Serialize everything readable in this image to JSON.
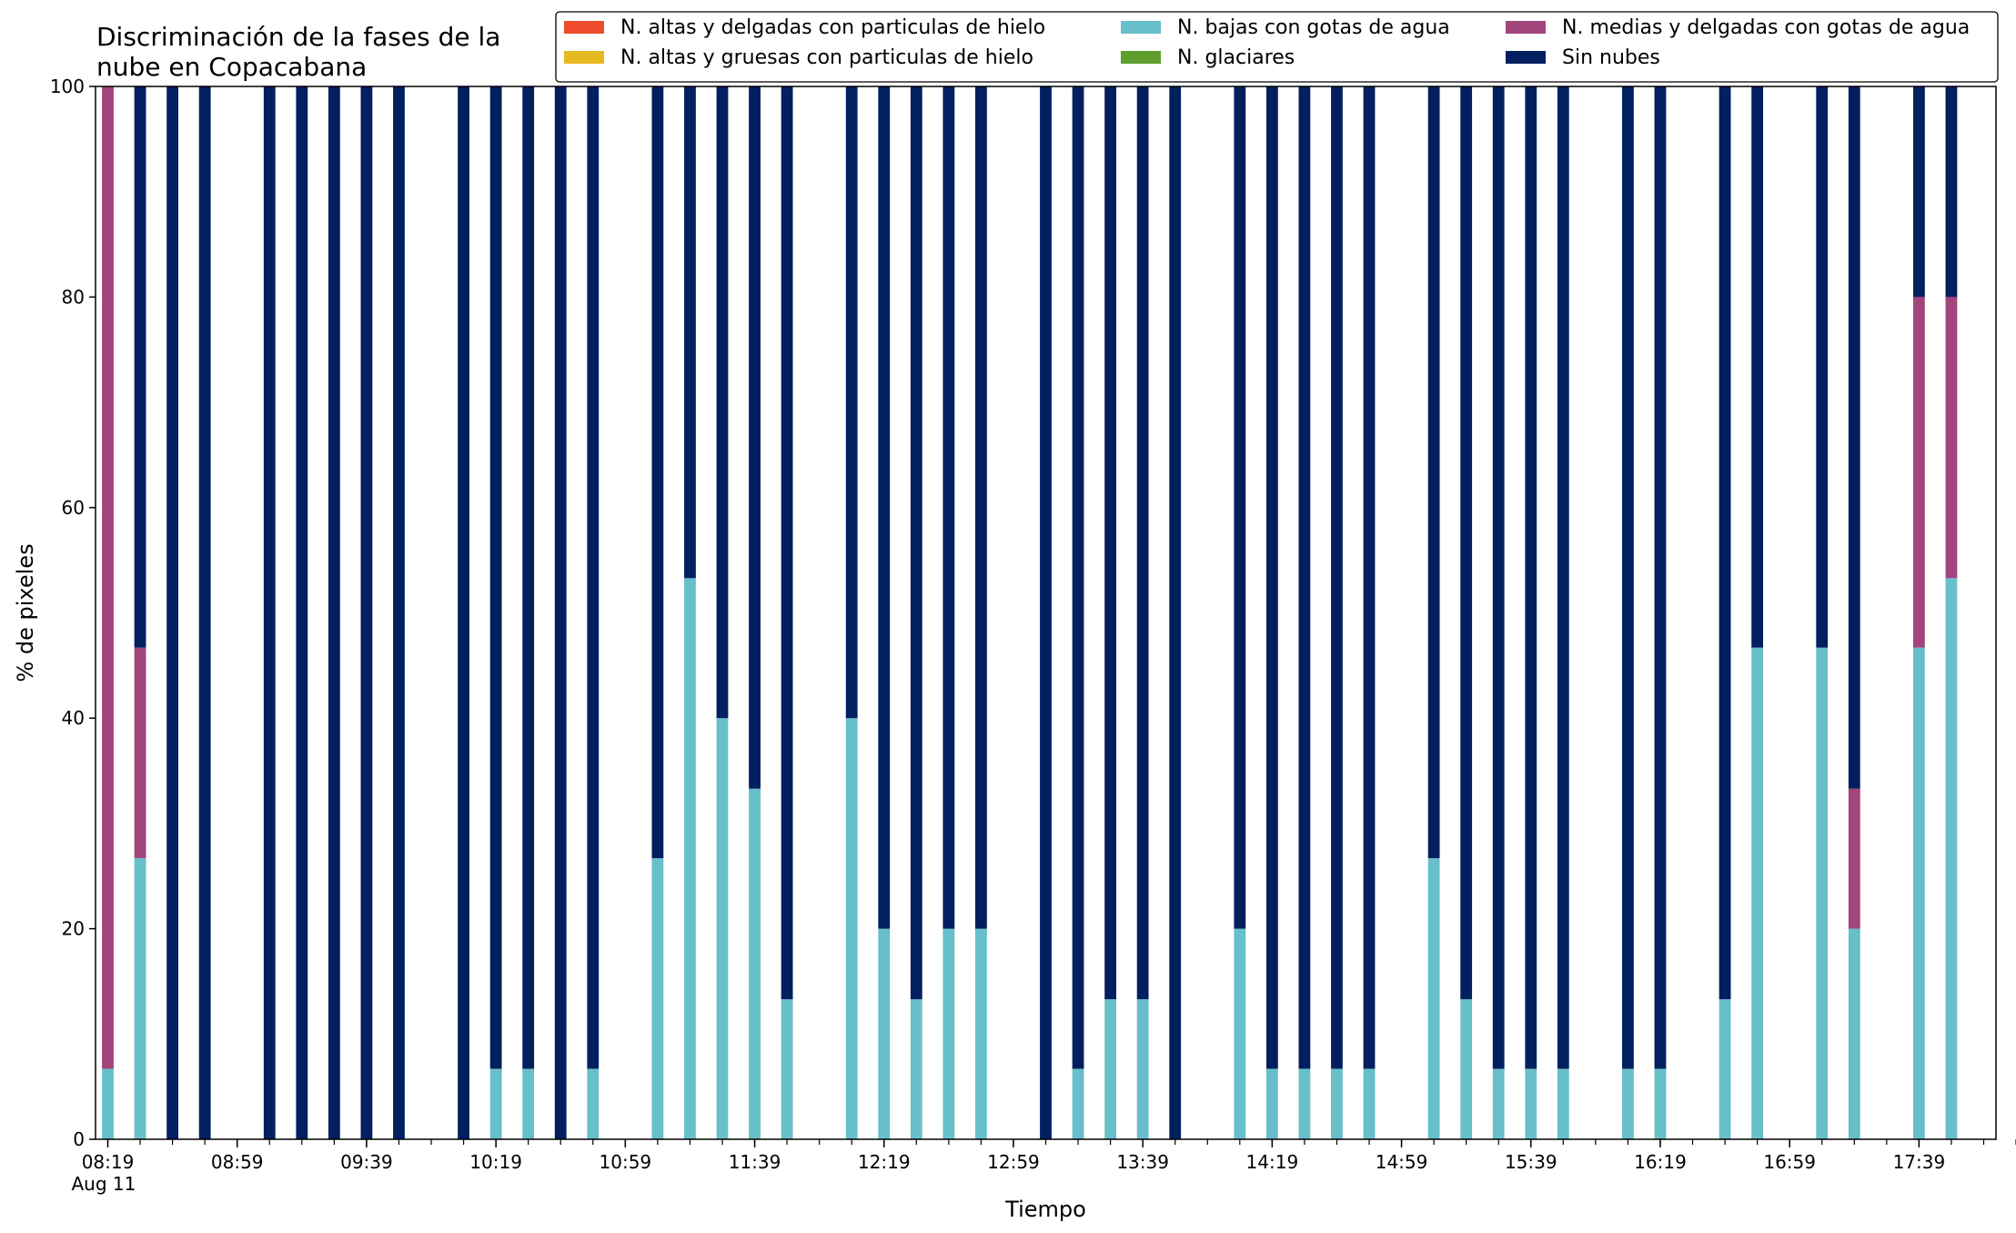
{
  "chart_data": {
    "type": "bar",
    "stacked": true,
    "title_lines": [
      "Discriminación de la fases de la",
      "nube en Copacabana"
    ],
    "xlabel": "Tiempo",
    "ylabel": "% de pixeles",
    "ylim": [
      0,
      100
    ],
    "yticks": [
      0,
      20,
      40,
      60,
      80,
      100
    ],
    "xrange": [
      "08:19",
      "18:09"
    ],
    "xtick_labels": [
      "08:19",
      "08:59",
      "09:39",
      "10:19",
      "10:59",
      "11:39",
      "12:19",
      "12:59",
      "13:39",
      "14:19",
      "14:59",
      "15:39",
      "16:19",
      "16:59",
      "17:39"
    ],
    "xtick_date_label": "Aug 11",
    "legend_position": "top-right",
    "legend_columns": 3,
    "series": [
      {
        "name": "N. altas y delgadas con particulas de hielo",
        "color": "#ee4c2c"
      },
      {
        "name": "N. altas y gruesas con particulas de hielo",
        "color": "#e6b91e"
      },
      {
        "name": "N. bajas con gotas de agua",
        "color": "#67bfca"
      },
      {
        "name": "N. glaciares",
        "color": "#5e9e2c"
      },
      {
        "name": "N. medias y delgadas con gotas de agua",
        "color": "#a1457a"
      },
      {
        "name": "Sin nubes",
        "color": "#021f5f"
      }
    ],
    "bars": [
      {
        "time": "08:19",
        "values": [
          0,
          0,
          6.7,
          0,
          93.3,
          0
        ]
      },
      {
        "time": "08:29",
        "values": [
          0,
          0,
          26.7,
          0,
          20.0,
          53.3
        ]
      },
      {
        "time": "08:39",
        "values": [
          0,
          0,
          0,
          0,
          0,
          100
        ]
      },
      {
        "time": "08:49",
        "values": [
          0,
          0,
          0,
          0,
          0,
          100
        ]
      },
      {
        "time": "09:09",
        "values": [
          0,
          0,
          0,
          0,
          0,
          100
        ]
      },
      {
        "time": "09:19",
        "values": [
          0,
          0,
          0,
          0,
          0,
          100
        ]
      },
      {
        "time": "09:29",
        "values": [
          0,
          0,
          0,
          0,
          0,
          100
        ]
      },
      {
        "time": "09:39",
        "values": [
          0,
          0,
          0,
          0,
          0,
          100
        ]
      },
      {
        "time": "09:49",
        "values": [
          0,
          0,
          0,
          0,
          0,
          100
        ]
      },
      {
        "time": "10:09",
        "values": [
          0,
          0,
          0,
          0,
          0,
          100
        ]
      },
      {
        "time": "10:19",
        "values": [
          0,
          0,
          6.7,
          0,
          0,
          93.3
        ]
      },
      {
        "time": "10:29",
        "values": [
          0,
          0,
          6.7,
          0,
          0,
          93.3
        ]
      },
      {
        "time": "10:39",
        "values": [
          0,
          0,
          0,
          0,
          0,
          100
        ]
      },
      {
        "time": "10:49",
        "values": [
          0,
          0,
          6.7,
          0,
          0,
          93.3
        ]
      },
      {
        "time": "11:09",
        "values": [
          0,
          0,
          26.7,
          0,
          0,
          73.3
        ]
      },
      {
        "time": "11:19",
        "values": [
          0,
          0,
          53.3,
          0,
          0,
          46.7
        ]
      },
      {
        "time": "11:29",
        "values": [
          0,
          0,
          40.0,
          0,
          0,
          60.0
        ]
      },
      {
        "time": "11:39",
        "values": [
          0,
          0,
          33.3,
          0,
          0,
          66.7
        ]
      },
      {
        "time": "11:49",
        "values": [
          0,
          0,
          13.3,
          0,
          0,
          86.7
        ]
      },
      {
        "time": "12:09",
        "values": [
          0,
          0,
          40.0,
          0,
          0,
          60.0
        ]
      },
      {
        "time": "12:19",
        "values": [
          0,
          0,
          20.0,
          0,
          0,
          80.0
        ]
      },
      {
        "time": "12:29",
        "values": [
          0,
          0,
          13.3,
          0,
          0,
          86.7
        ]
      },
      {
        "time": "12:39",
        "values": [
          0,
          0,
          20.0,
          0,
          0,
          80.0
        ]
      },
      {
        "time": "12:49",
        "values": [
          0,
          0,
          20.0,
          0,
          0,
          80.0
        ]
      },
      {
        "time": "13:09",
        "values": [
          0,
          0,
          0,
          0,
          0,
          100
        ]
      },
      {
        "time": "13:19",
        "values": [
          0,
          0,
          6.7,
          0,
          0,
          93.3
        ]
      },
      {
        "time": "13:29",
        "values": [
          0,
          0,
          13.3,
          0,
          0,
          86.7
        ]
      },
      {
        "time": "13:39",
        "values": [
          0,
          0,
          13.3,
          0,
          0,
          86.7
        ]
      },
      {
        "time": "13:49",
        "values": [
          0,
          0,
          0,
          0,
          0,
          100
        ]
      },
      {
        "time": "14:09",
        "values": [
          0,
          0,
          20.0,
          0,
          0,
          80.0
        ]
      },
      {
        "time": "14:19",
        "values": [
          0,
          0,
          6.7,
          0,
          0,
          93.3
        ]
      },
      {
        "time": "14:29",
        "values": [
          0,
          0,
          6.7,
          0,
          0,
          93.3
        ]
      },
      {
        "time": "14:39",
        "values": [
          0,
          0,
          6.7,
          0,
          0,
          93.3
        ]
      },
      {
        "time": "14:49",
        "values": [
          0,
          0,
          6.7,
          0,
          0,
          93.3
        ]
      },
      {
        "time": "15:09",
        "values": [
          0,
          0,
          26.7,
          0,
          0,
          73.3
        ]
      },
      {
        "time": "15:19",
        "values": [
          0,
          0,
          13.3,
          0,
          0,
          86.7
        ]
      },
      {
        "time": "15:29",
        "values": [
          0,
          0,
          6.7,
          0,
          0,
          93.3
        ]
      },
      {
        "time": "15:39",
        "values": [
          0,
          0,
          6.7,
          0,
          0,
          93.3
        ]
      },
      {
        "time": "15:49",
        "values": [
          0,
          0,
          6.7,
          0,
          0,
          93.3
        ]
      },
      {
        "time": "16:09",
        "values": [
          0,
          0,
          6.7,
          0,
          0,
          93.3
        ]
      },
      {
        "time": "16:19",
        "values": [
          0,
          0,
          6.7,
          0,
          0,
          93.3
        ]
      },
      {
        "time": "16:39",
        "values": [
          0,
          0,
          13.3,
          0,
          0,
          86.7
        ]
      },
      {
        "time": "16:49",
        "values": [
          0,
          0,
          46.7,
          0,
          0,
          53.3
        ]
      },
      {
        "time": "17:09",
        "values": [
          0,
          0,
          46.7,
          0,
          0,
          53.3
        ]
      },
      {
        "time": "17:19",
        "values": [
          0,
          0,
          20.0,
          0,
          13.3,
          66.7
        ]
      },
      {
        "time": "17:39",
        "values": [
          0,
          0,
          46.7,
          0,
          33.3,
          20.0
        ]
      },
      {
        "time": "17:49",
        "values": [
          0,
          0,
          53.3,
          0,
          26.7,
          20.0
        ]
      }
    ]
  }
}
